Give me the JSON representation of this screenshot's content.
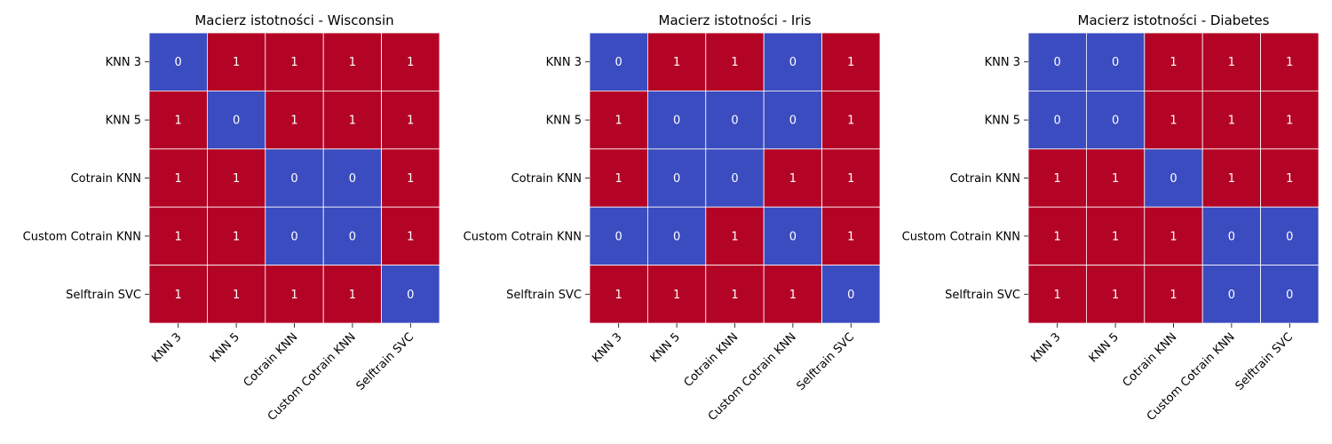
{
  "colors": {
    "zero": "#3b4cc0",
    "one": "#b40426",
    "cell_text": "#ffffff",
    "grid": "#ffffff",
    "axis_text": "#000000"
  },
  "chart_data": [
    {
      "type": "heatmap",
      "title": "Macierz istotności - Wisconsin",
      "rows": [
        "KNN 3",
        "KNN 5",
        "Cotrain KNN",
        "Custom Cotrain KNN",
        "Selftrain SVC"
      ],
      "cols": [
        "KNN 3",
        "KNN 5",
        "Cotrain KNN",
        "Custom Cotrain KNN",
        "Selftrain SVC"
      ],
      "values": [
        [
          0,
          1,
          1,
          1,
          1
        ],
        [
          1,
          0,
          1,
          1,
          1
        ],
        [
          1,
          1,
          0,
          0,
          1
        ],
        [
          1,
          1,
          0,
          0,
          1
        ],
        [
          1,
          1,
          1,
          1,
          0
        ]
      ],
      "colorbar": false
    },
    {
      "type": "heatmap",
      "title": "Macierz istotności - Iris",
      "rows": [
        "KNN 3",
        "KNN 5",
        "Cotrain KNN",
        "Custom Cotrain KNN",
        "Selftrain SVC"
      ],
      "cols": [
        "KNN 3",
        "KNN 5",
        "Cotrain KNN",
        "Custom Cotrain KNN",
        "Selftrain SVC"
      ],
      "values": [
        [
          0,
          1,
          1,
          0,
          1
        ],
        [
          1,
          0,
          0,
          0,
          1
        ],
        [
          1,
          0,
          0,
          1,
          1
        ],
        [
          0,
          0,
          1,
          0,
          1
        ],
        [
          1,
          1,
          1,
          1,
          0
        ]
      ],
      "colorbar": false
    },
    {
      "type": "heatmap",
      "title": "Macierz istotności - Diabetes",
      "rows": [
        "KNN 3",
        "KNN 5",
        "Cotrain KNN",
        "Custom Cotrain KNN",
        "Selftrain SVC"
      ],
      "cols": [
        "KNN 3",
        "KNN 5",
        "Cotrain KNN",
        "Custom Cotrain KNN",
        "Selftrain SVC"
      ],
      "values": [
        [
          0,
          0,
          1,
          1,
          1
        ],
        [
          0,
          0,
          1,
          1,
          1
        ],
        [
          1,
          1,
          0,
          1,
          1
        ],
        [
          1,
          1,
          1,
          0,
          0
        ],
        [
          1,
          1,
          1,
          0,
          0
        ]
      ],
      "colorbar": false
    }
  ]
}
